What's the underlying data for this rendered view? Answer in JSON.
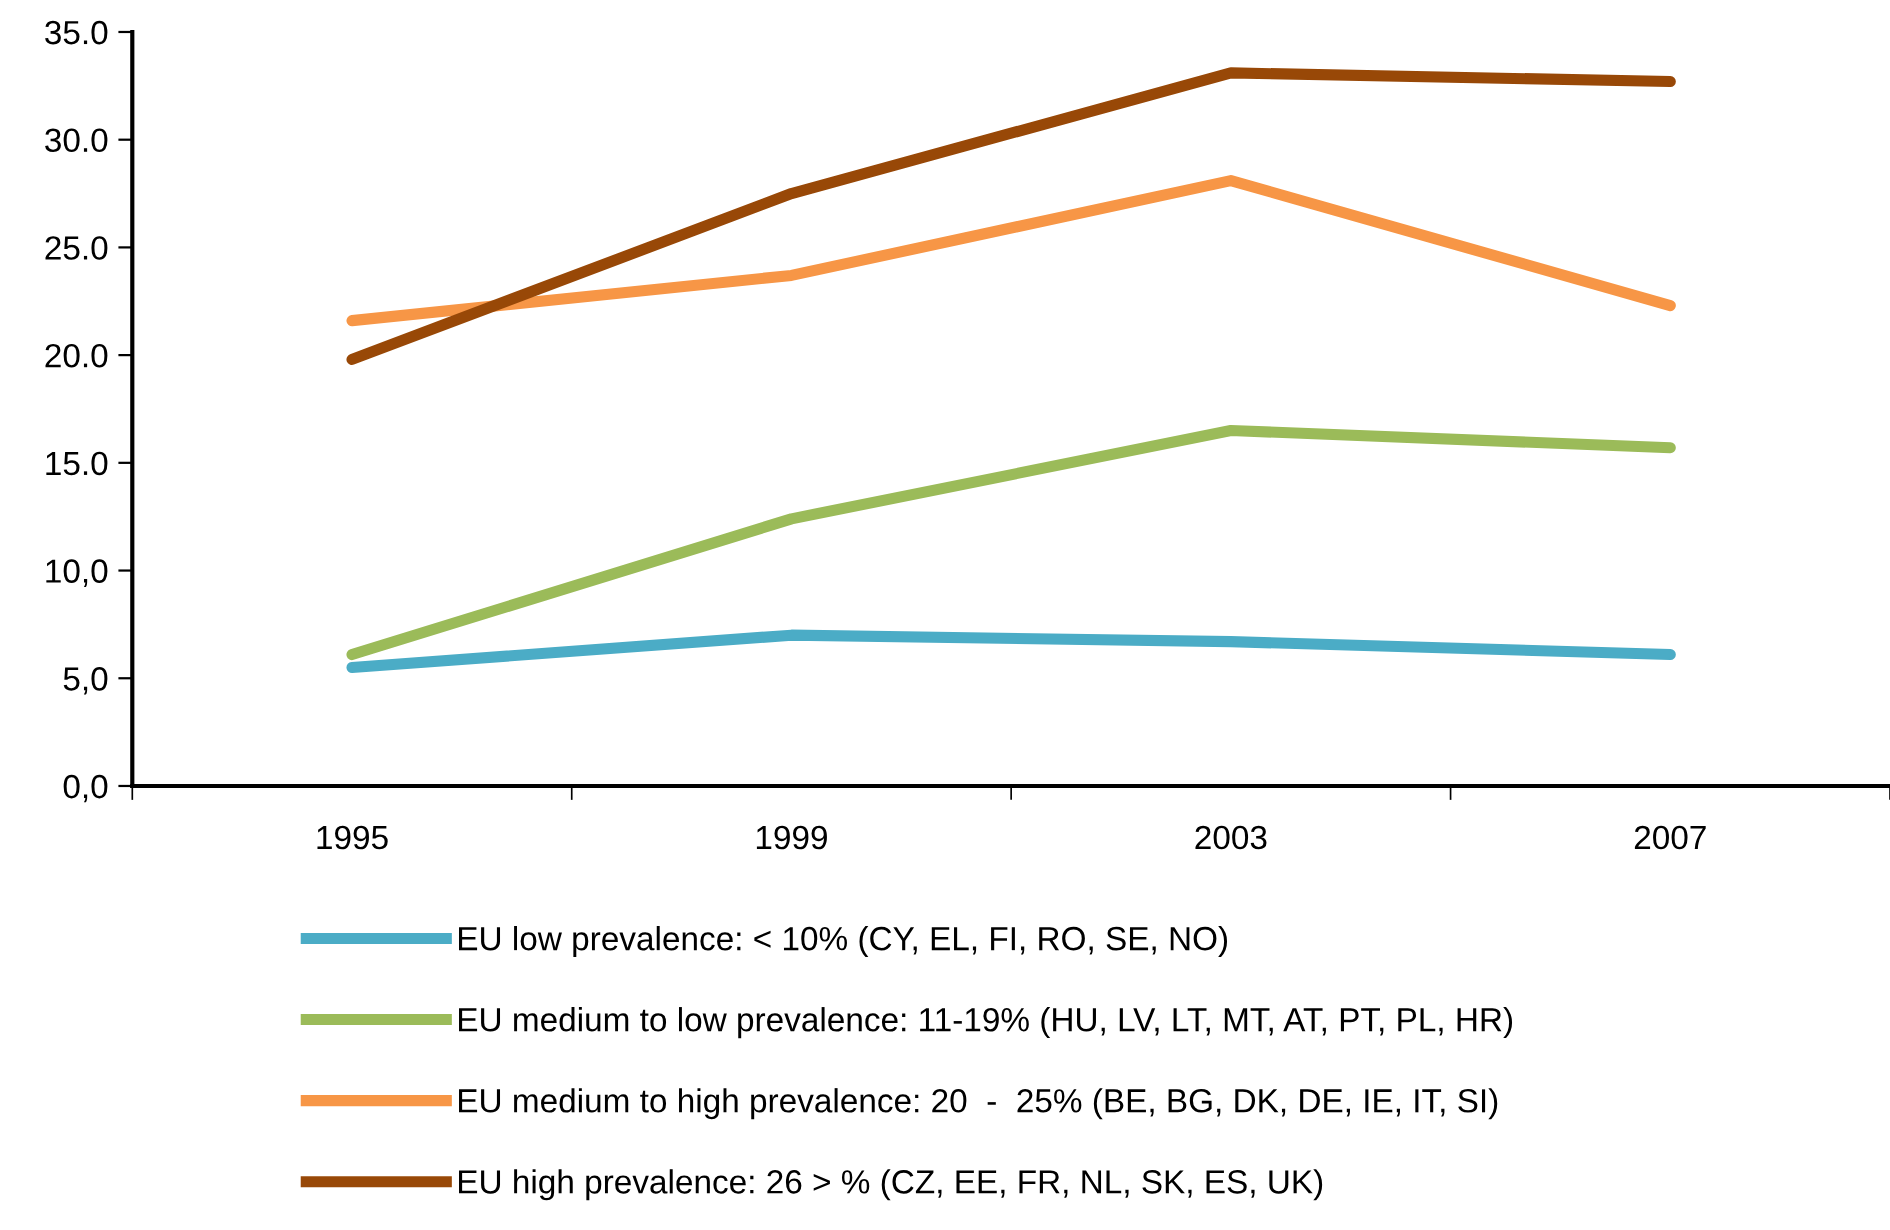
{
  "chart_data": {
    "type": "line",
    "categories": [
      "1995",
      "1999",
      "2003",
      "2007"
    ],
    "series": [
      {
        "name": "EU low prevalence: < 10% (CY, EL, FI, RO, SE, NO)",
        "color": "#4bacc6",
        "values": [
          5.5,
          7.0,
          6.7,
          6.1
        ]
      },
      {
        "name": "EU medium to low prevalence: 11-19% (HU, LV, LT, MT, AT, PT, PL, HR)",
        "color": "#9bbb59",
        "values": [
          6.1,
          12.4,
          16.5,
          15.7
        ]
      },
      {
        "name": "EU medium to high prevalence: 20  -  25% (BE, BG, DK, DE, IE, IT, SI)",
        "color": "#f79646",
        "values": [
          21.6,
          23.7,
          28.1,
          22.3
        ]
      },
      {
        "name": "EU high prevalence: 26 > % (CZ, EE, FR, NL, SK, ES, UK)",
        "color": "#984807",
        "values": [
          19.8,
          27.5,
          33.1,
          32.7
        ]
      }
    ],
    "ylim": [
      0,
      35
    ],
    "yticks": [
      {
        "value": 0,
        "label": "0,0"
      },
      {
        "value": 5,
        "label": "5,0"
      },
      {
        "value": 10,
        "label": "10,0"
      },
      {
        "value": 15,
        "label": "15.0"
      },
      {
        "value": 20,
        "label": "20.0"
      },
      {
        "value": 25,
        "label": "25.0"
      },
      {
        "value": 30,
        "label": "30.0"
      },
      {
        "value": 35,
        "label": "35.0"
      }
    ],
    "grid": false,
    "legend": "bottom",
    "marker": "none",
    "line_style": "solid"
  }
}
